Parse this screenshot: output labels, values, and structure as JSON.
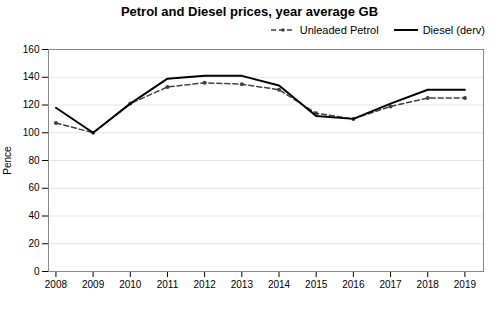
{
  "chart_data": {
    "type": "line",
    "title": "Petrol and Diesel prices, year average GB",
    "x": [
      2008,
      2009,
      2010,
      2011,
      2012,
      2013,
      2014,
      2015,
      2016,
      2017,
      2018,
      2019
    ],
    "series": [
      {
        "name": "Unleaded Petrol",
        "color": "#404040",
        "line_style": "dashed",
        "marker": "dot",
        "values": [
          107,
          100,
          121,
          133,
          136,
          135,
          131,
          114,
          110,
          119,
          125,
          125
        ]
      },
      {
        "name": "Diesel (derv)",
        "color": "#000000",
        "line_style": "solid",
        "marker": "none",
        "values": [
          118,
          100,
          121,
          139,
          141,
          141,
          134,
          112,
          110,
          121,
          131,
          131
        ]
      }
    ],
    "ylabel": "Pence",
    "xlim": [
      2007.8,
      2019.5
    ],
    "xticks": [
      2008,
      2009,
      2010,
      2011,
      2012,
      2013,
      2014,
      2015,
      2016,
      2017,
      2018,
      2019
    ],
    "ylim": [
      0,
      160
    ],
    "yticks": [
      0,
      20,
      40,
      60,
      80,
      100,
      120,
      140,
      160
    ],
    "grid": true,
    "legend": "upper right"
  }
}
